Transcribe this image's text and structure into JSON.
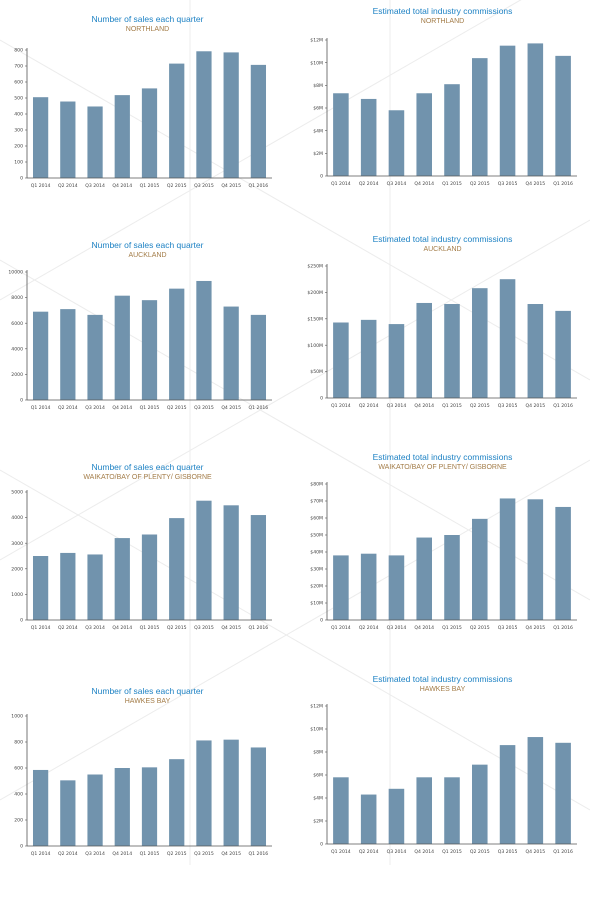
{
  "chart_data": [
    {
      "type": "bar",
      "title": "Number of sales each quarter",
      "subtitle": "NORTHLAND",
      "categories": [
        "Q1 2014",
        "Q2 2014",
        "Q3 2014",
        "Q4 2014",
        "Q1 2015",
        "Q2 2015",
        "Q3 2015",
        "Q4 2015",
        "Q1 2016"
      ],
      "values": [
        505,
        478,
        447,
        518,
        560,
        715,
        792,
        785,
        707
      ],
      "ylim": [
        0,
        800
      ],
      "yticks": [
        0,
        100,
        200,
        300,
        400,
        500,
        600,
        700,
        800
      ],
      "ytick_labels": [
        "0",
        "100",
        "200",
        "300",
        "400",
        "500",
        "600",
        "700",
        "800"
      ],
      "bar_color": "#7193ad",
      "grid": false
    },
    {
      "type": "bar",
      "title": "Estimated total industry commissions",
      "subtitle": "NORTHLAND",
      "categories": [
        "Q1 2014",
        "Q2 2014",
        "Q3 2014",
        "Q4 2014",
        "Q1 2015",
        "Q2 2015",
        "Q3 2015",
        "Q4 2015",
        "Q1 2016"
      ],
      "values": [
        7.3,
        6.8,
        5.8,
        7.3,
        8.1,
        10.4,
        11.5,
        11.7,
        10.6
      ],
      "ylim": [
        0,
        12
      ],
      "yticks": [
        0,
        2,
        4,
        6,
        8,
        10,
        12
      ],
      "ytick_labels": [
        "0",
        "$2M",
        "$4M",
        "$6M",
        "$8M",
        "$10M",
        "$12M"
      ],
      "bar_color": "#7193ad",
      "grid": false
    },
    {
      "type": "bar",
      "title": "Number of sales each quarter",
      "subtitle": "AUCKLAND",
      "categories": [
        "Q1 2014",
        "Q2 2014",
        "Q3 2014",
        "Q4 2014",
        "Q1 2015",
        "Q2 2015",
        "Q3 2015",
        "Q4 2015",
        "Q1 2016"
      ],
      "values": [
        6900,
        7100,
        6650,
        8150,
        7800,
        8700,
        9300,
        7300,
        6650
      ],
      "ylim": [
        0,
        10000
      ],
      "yticks": [
        0,
        2000,
        4000,
        6000,
        8000,
        10000
      ],
      "ytick_labels": [
        "0",
        "2000",
        "4000",
        "6000",
        "8000",
        "10000"
      ],
      "bar_color": "#7193ad",
      "grid": false
    },
    {
      "type": "bar",
      "title": "Estimated total industry commissions",
      "subtitle": "AUCKLAND",
      "categories": [
        "Q1 2014",
        "Q2 2014",
        "Q3 2014",
        "Q4 2014",
        "Q1 2015",
        "Q2 2015",
        "Q3 2015",
        "Q4 2015",
        "Q1 2016"
      ],
      "values": [
        143,
        148,
        140,
        180,
        178,
        208,
        225,
        178,
        165
      ],
      "ylim": [
        0,
        250
      ],
      "yticks": [
        0,
        50,
        100,
        150,
        200,
        250
      ],
      "ytick_labels": [
        "0",
        "$50M",
        "$100M",
        "$150M",
        "$200M",
        "$250M"
      ],
      "bar_color": "#7193ad",
      "grid": false
    },
    {
      "type": "bar",
      "title": "Number of sales each quarter",
      "subtitle": "WAIKATO/BAY OF PLENTY/ GISBORNE",
      "categories": [
        "Q1 2014",
        "Q2 2014",
        "Q3 2014",
        "Q4 2014",
        "Q1 2015",
        "Q2 2015",
        "Q3 2015",
        "Q4 2015",
        "Q1 2016"
      ],
      "values": [
        2500,
        2620,
        2560,
        3200,
        3340,
        3980,
        4660,
        4480,
        4100
      ],
      "ylim": [
        0,
        5000
      ],
      "yticks": [
        0,
        1000,
        2000,
        3000,
        4000,
        5000
      ],
      "ytick_labels": [
        "0",
        "1000",
        "2000",
        "3000",
        "4000",
        "5000"
      ],
      "bar_color": "#7193ad",
      "grid": false
    },
    {
      "type": "bar",
      "title": "Estimated total industry commissions",
      "subtitle": "WAIKATO/BAY OF PLENTY/ GISBORNE",
      "categories": [
        "Q1 2014",
        "Q2 2014",
        "Q3 2014",
        "Q4 2014",
        "Q1 2015",
        "Q2 2015",
        "Q3 2015",
        "Q4 2015",
        "Q1 2016"
      ],
      "values": [
        38,
        39,
        38,
        48.5,
        50,
        59.5,
        71.5,
        71,
        66.5
      ],
      "ylim": [
        0,
        80
      ],
      "yticks": [
        0,
        10,
        20,
        30,
        40,
        50,
        60,
        70,
        80
      ],
      "ytick_labels": [
        "0",
        "$10M",
        "$20M",
        "$30M",
        "$40M",
        "$50M",
        "$60M",
        "$70M",
        "$80M"
      ],
      "bar_color": "#7193ad",
      "grid": false
    },
    {
      "type": "bar",
      "title": "Number of sales each quarter",
      "subtitle": "HAWKES BAY",
      "categories": [
        "Q1 2014",
        "Q2 2014",
        "Q3 2014",
        "Q4 2014",
        "Q1 2015",
        "Q2 2015",
        "Q3 2015",
        "Q4 2015",
        "Q1 2016"
      ],
      "values": [
        585,
        505,
        550,
        600,
        605,
        668,
        812,
        818,
        758
      ],
      "ylim": [
        0,
        1000
      ],
      "yticks": [
        0,
        200,
        400,
        600,
        800,
        1000
      ],
      "ytick_labels": [
        "0",
        "200",
        "400",
        "600",
        "800",
        "1000"
      ],
      "bar_color": "#7193ad",
      "grid": false
    },
    {
      "type": "bar",
      "title": "Estimated total industry commissions",
      "subtitle": "HAWKES BAY",
      "categories": [
        "Q1 2014",
        "Q2 2014",
        "Q3 2014",
        "Q4 2014",
        "Q1 2015",
        "Q2 2015",
        "Q3 2015",
        "Q4 2015",
        "Q1 2016"
      ],
      "values": [
        5.8,
        4.3,
        4.8,
        5.8,
        5.8,
        6.9,
        8.6,
        9.3,
        8.8
      ],
      "ylim": [
        0,
        12
      ],
      "yticks": [
        0,
        2,
        4,
        6,
        8,
        10,
        12
      ],
      "ytick_labels": [
        "0",
        "$2M",
        "$4M",
        "$6M",
        "$8M",
        "$10M",
        "$12M"
      ],
      "bar_color": "#7193ad",
      "grid": false
    }
  ]
}
